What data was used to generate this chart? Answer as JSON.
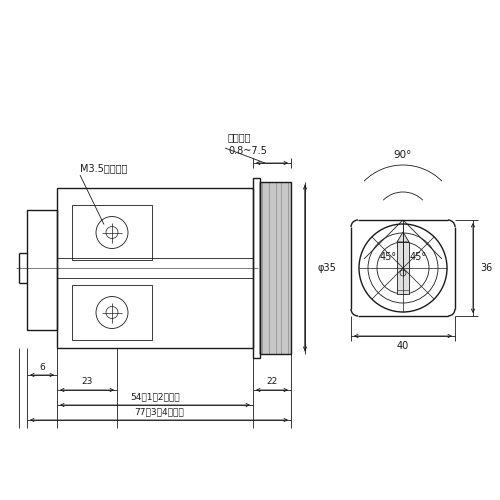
{
  "bg_color": "#ffffff",
  "line_color": "#1a1a1a",
  "fig_width": 5.0,
  "fig_height": 5.0,
  "dpi": 100,
  "labels": {
    "terminal_screw": "M3.5端子ねじ",
    "panel_thickness": "パネル厚",
    "panel_range": "0.8~7.5",
    "phi35": "φ35",
    "dim6": "6",
    "dim23": "23",
    "dim54": "54（1～2接点）",
    "dim77": "77（3～4接点）",
    "dim22": "22",
    "dim90": "90°",
    "dim45L": "45°",
    "dim45R": "45°",
    "dim36": "36",
    "dim40": "40"
  }
}
